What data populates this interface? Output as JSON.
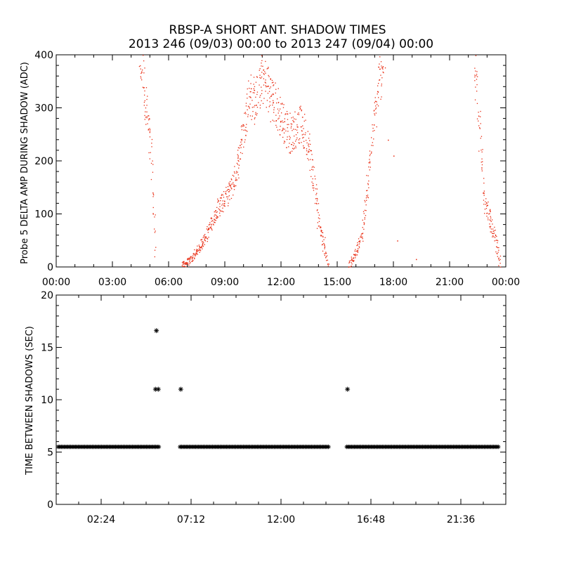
{
  "figure": {
    "title": "RBSP-A SHORT ANT. SHADOW TIMES",
    "subtitle": "2013 246 (09/03) 00:00 to 2013 247 (09/04) 00:00"
  },
  "chart_data": [
    {
      "type": "scatter",
      "title": "RBSP-A SHORT ANT. SHADOW TIMES",
      "subtitle": "2013 246 (09/03) 00:00 to 2013 247 (09/04) 00:00",
      "xlabel": "",
      "ylabel": "Probe 5 DELTA AMP DURING SHADOW (ADC)",
      "x_units": "hours since 2013-09-03 00:00",
      "xlim": [
        0,
        24
      ],
      "ylim": [
        0,
        400
      ],
      "xticks": [
        "00:00",
        "03:00",
        "06:00",
        "09:00",
        "12:00",
        "15:00",
        "18:00",
        "21:00",
        "00:00"
      ],
      "yticks": [
        "0",
        "100",
        "200",
        "300",
        "400"
      ],
      "marker_color": "#e8280e",
      "grid": false,
      "trend_points": [
        {
          "x": 4.4,
          "y": 400
        },
        {
          "x": 4.6,
          "y": 370
        },
        {
          "x": 4.8,
          "y": 300
        },
        {
          "x": 5.0,
          "y": 230
        },
        {
          "x": 5.1,
          "y": 190
        },
        {
          "x": 5.2,
          "y": 100
        },
        {
          "x": 5.3,
          "y": 25
        },
        {
          "x": 6.7,
          "y": 3
        },
        {
          "x": 7.2,
          "y": 15
        },
        {
          "x": 7.6,
          "y": 35
        },
        {
          "x": 8.0,
          "y": 60
        },
        {
          "x": 8.6,
          "y": 110
        },
        {
          "x": 9.2,
          "y": 140
        },
        {
          "x": 9.6,
          "y": 180
        },
        {
          "x": 10.0,
          "y": 260
        },
        {
          "x": 10.3,
          "y": 330
        },
        {
          "x": 10.6,
          "y": 310
        },
        {
          "x": 11.0,
          "y": 360
        },
        {
          "x": 11.5,
          "y": 320
        },
        {
          "x": 12.0,
          "y": 280
        },
        {
          "x": 12.5,
          "y": 250
        },
        {
          "x": 13.0,
          "y": 270
        },
        {
          "x": 13.4,
          "y": 240
        },
        {
          "x": 13.7,
          "y": 170
        },
        {
          "x": 14.0,
          "y": 90
        },
        {
          "x": 14.3,
          "y": 40
        },
        {
          "x": 14.5,
          "y": 5
        },
        {
          "x": 15.6,
          "y": 3
        },
        {
          "x": 15.9,
          "y": 20
        },
        {
          "x": 16.3,
          "y": 60
        },
        {
          "x": 16.6,
          "y": 150
        },
        {
          "x": 16.9,
          "y": 260
        },
        {
          "x": 17.2,
          "y": 340
        },
        {
          "x": 17.5,
          "y": 400
        },
        {
          "x": 22.3,
          "y": 400
        },
        {
          "x": 22.5,
          "y": 300
        },
        {
          "x": 22.7,
          "y": 200
        },
        {
          "x": 22.9,
          "y": 120
        },
        {
          "x": 23.2,
          "y": 80
        },
        {
          "x": 23.5,
          "y": 40
        },
        {
          "x": 23.7,
          "y": 5
        }
      ],
      "isolated_points": [
        {
          "x": 18.0,
          "y": 210
        },
        {
          "x": 17.7,
          "y": 240
        },
        {
          "x": 18.2,
          "y": 50
        },
        {
          "x": 19.2,
          "y": 15
        }
      ]
    },
    {
      "type": "scatter",
      "xlabel": "",
      "ylabel": "TIME BETWEEN SHADOWS (SEC)",
      "x_units": "hours since 2013-09-03 00:00",
      "xlim": [
        0,
        24
      ],
      "ylim": [
        0,
        20
      ],
      "xticks": [
        "02:24",
        "07:12",
        "12:00",
        "16:48",
        "21:36"
      ],
      "yticks": [
        "0",
        "5",
        "10",
        "15",
        "20"
      ],
      "marker": "*",
      "marker_color": "#000000",
      "baseline_value": 5.5,
      "baseline_segments": [
        [
          0.0,
          5.55
        ],
        [
          6.5,
          14.6
        ],
        [
          15.4,
          23.6
        ]
      ],
      "outliers": [
        {
          "x": 5.35,
          "y": 16.6
        },
        {
          "x": 5.3,
          "y": 11.0
        },
        {
          "x": 5.45,
          "y": 11.0
        },
        {
          "x": 6.65,
          "y": 11.0
        },
        {
          "x": 15.55,
          "y": 11.0
        }
      ]
    }
  ]
}
